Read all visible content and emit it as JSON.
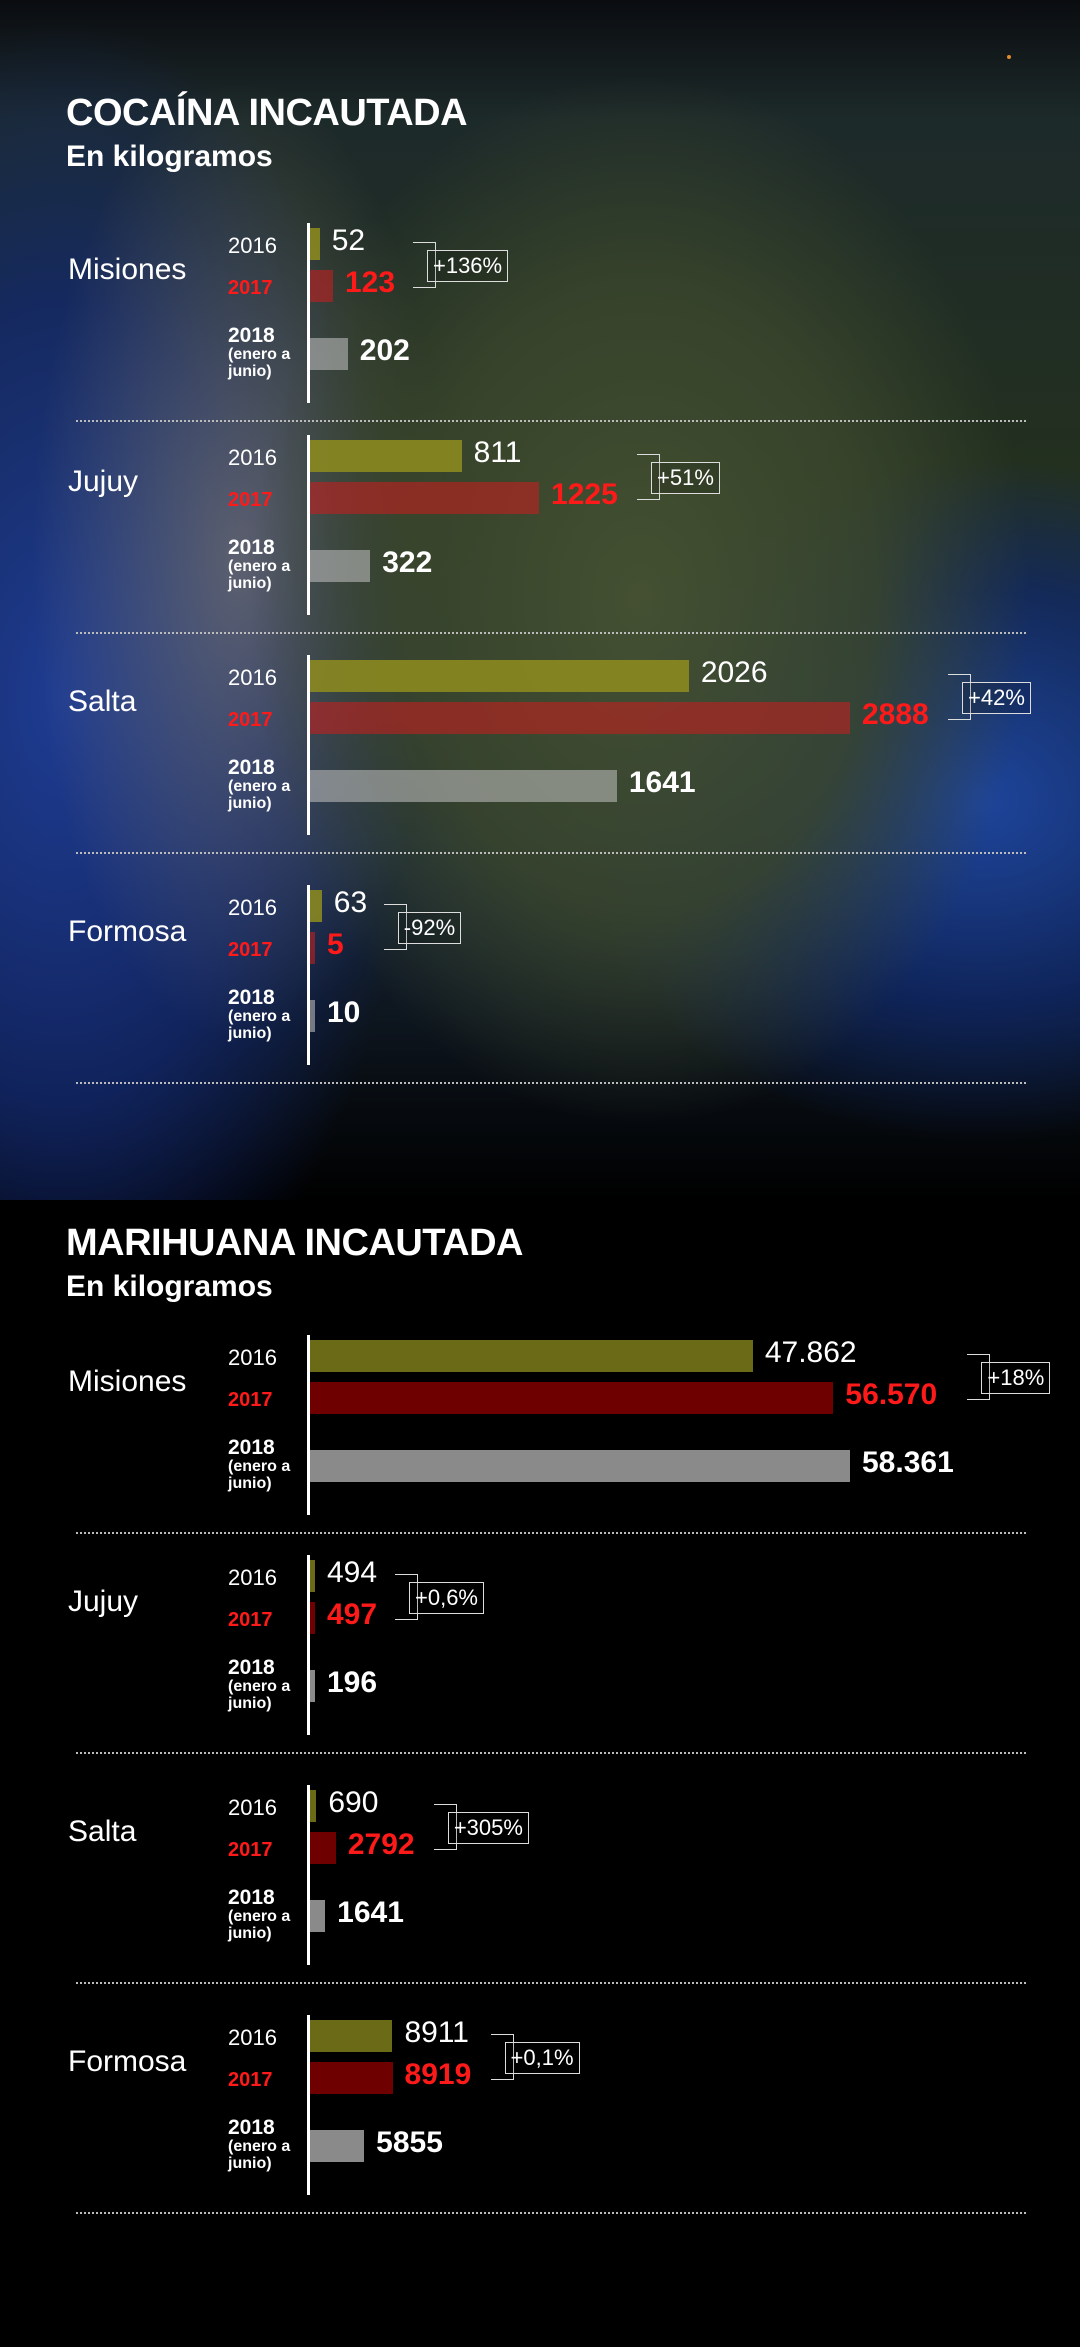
{
  "colors": {
    "y2016": "#8f8d1f",
    "y2017": "#c22020",
    "y2018": "#b9b9b9",
    "y2017_dark": "#6e0000",
    "y2018_gray": "#8a8a8a"
  },
  "sections": [
    {
      "title": "COCAÍNA INCAUTADA",
      "subtitle": "En kilogramos",
      "rows": [
        {
          "region": "Misiones",
          "v2016": "52",
          "v2017": "123",
          "v2018": "202",
          "change": "+136%"
        },
        {
          "region": "Jujuy",
          "v2016": "811",
          "v2017": "1225",
          "v2018": "322",
          "change": "+51%"
        },
        {
          "region": "Salta",
          "v2016": "2026",
          "v2017": "2888",
          "v2018": "1641",
          "change": "+42%"
        },
        {
          "region": "Formosa",
          "v2016": "63",
          "v2017": "5",
          "v2018": "10",
          "change": "-92%"
        }
      ]
    },
    {
      "title": "MARIHUANA INCAUTADA",
      "subtitle": "En kilogramos",
      "rows": [
        {
          "region": "Misiones",
          "v2016": "47.862",
          "v2017": "56.570",
          "v2018": "58.361",
          "change": "+18%"
        },
        {
          "region": "Jujuy",
          "v2016": "494",
          "v2017": "497",
          "v2018": "196",
          "change": "+0,6%"
        },
        {
          "region": "Salta",
          "v2016": "690",
          "v2017": "2792",
          "v2018": "1641",
          "change": "+305%"
        },
        {
          "region": "Formosa",
          "v2016": "8911",
          "v2017": "8919",
          "v2018": "5855",
          "change": "+0,1%"
        }
      ]
    }
  ],
  "year_labels": {
    "y2016": "2016",
    "y2017": "2017",
    "y2018": "2018",
    "y2018_note_1": "(enero a",
    "y2018_note_2": "junio)"
  },
  "chart_data": [
    {
      "type": "bar",
      "title": "COCAÍNA INCAUTADA",
      "subtitle": "En kilogramos",
      "categories": [
        "Misiones",
        "Jujuy",
        "Salta",
        "Formosa"
      ],
      "series": [
        {
          "name": "2016",
          "values": [
            52,
            811,
            2026,
            63
          ]
        },
        {
          "name": "2017",
          "values": [
            123,
            1225,
            2888,
            5
          ]
        },
        {
          "name": "2018 (enero a junio)",
          "values": [
            202,
            322,
            1641,
            10
          ]
        }
      ],
      "annotations": [
        "+136%",
        "+51%",
        "+42%",
        "-92%"
      ]
    },
    {
      "type": "bar",
      "title": "MARIHUANA INCAUTADA",
      "subtitle": "En kilogramos",
      "categories": [
        "Misiones",
        "Jujuy",
        "Salta",
        "Formosa"
      ],
      "series": [
        {
          "name": "2016",
          "values": [
            47862,
            494,
            690,
            8911
          ]
        },
        {
          "name": "2017",
          "values": [
            56570,
            497,
            2792,
            8919
          ]
        },
        {
          "name": "2018 (enero a junio)",
          "values": [
            58361,
            196,
            1641,
            5855
          ]
        }
      ],
      "annotations": [
        "+18%",
        "+0,6%",
        "+305%",
        "+0,1%"
      ]
    }
  ]
}
